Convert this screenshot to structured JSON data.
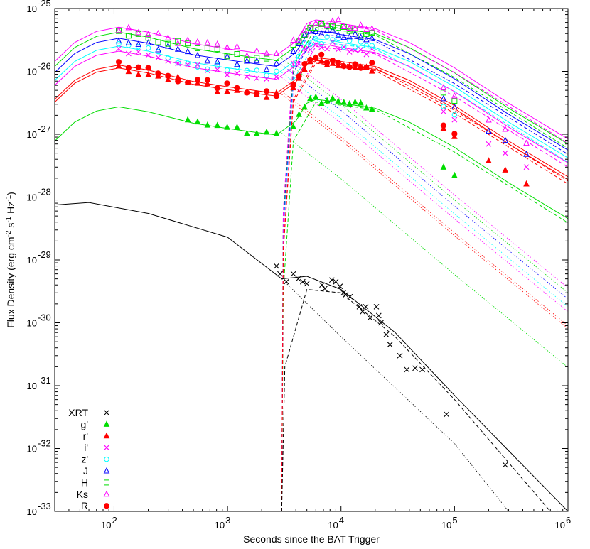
{
  "chart_data": {
    "type": "scatter",
    "title": "",
    "xlabel": "Seconds since the BAT Trigger",
    "ylabel_parts": {
      "main": "Flux Density (erg cm",
      "exp1": "-2",
      "mid1": " s",
      "exp2": "-1",
      "mid2": " Hz",
      "exp3": "-1",
      "end": ")"
    },
    "x_scale": "log",
    "y_scale": "log",
    "xlim": [
      30,
      1000000
    ],
    "ylim": [
      1e-33,
      1e-25
    ],
    "x_ticks": [
      {
        "value": 100,
        "base": "10",
        "exp": "2"
      },
      {
        "value": 1000,
        "base": "10",
        "exp": "3"
      },
      {
        "value": 10000,
        "base": "10",
        "exp": "4"
      },
      {
        "value": 100000,
        "base": "10",
        "exp": "5"
      },
      {
        "value": 1000000,
        "base": "10",
        "exp": "6"
      }
    ],
    "y_ticks": [
      {
        "value": 1e-25,
        "base": "10",
        "exp": "-25"
      },
      {
        "value": 1e-26,
        "base": "10",
        "exp": "-26"
      },
      {
        "value": 1e-27,
        "base": "10",
        "exp": "-27"
      },
      {
        "value": 1e-28,
        "base": "10",
        "exp": "-28"
      },
      {
        "value": 1e-29,
        "base": "10",
        "exp": "-29"
      },
      {
        "value": 1e-30,
        "base": "10",
        "exp": "-30"
      },
      {
        "value": 1e-31,
        "base": "10",
        "exp": "-31"
      },
      {
        "value": 1e-32,
        "base": "10",
        "exp": "-32"
      },
      {
        "value": 1e-33,
        "base": "10",
        "exp": "-33"
      }
    ],
    "grid": false,
    "legend_position": "bottom-left",
    "series": [
      {
        "name": "XRT",
        "color": "#000000",
        "marker": "x",
        "factor": 1,
        "points": [
          [
            2700,
            8e-30
          ],
          [
            2900,
            6e-30
          ],
          [
            3300,
            4.5e-30
          ],
          [
            3800,
            6e-30
          ],
          [
            4200,
            5e-30
          ],
          [
            4600,
            4.5e-30
          ],
          [
            5000,
            4.2e-30
          ],
          [
            6800,
            4e-30
          ],
          [
            7200,
            3.5e-30
          ],
          [
            8300,
            4.8e-30
          ],
          [
            9000,
            4.5e-30
          ],
          [
            9800,
            3.8e-30
          ],
          [
            10500,
            3e-30
          ],
          [
            11000,
            2.8e-30
          ],
          [
            12000,
            2.6e-30
          ],
          [
            14500,
            1.8e-30
          ],
          [
            15500,
            1.5e-30
          ],
          [
            16500,
            1.8e-30
          ],
          [
            18000,
            1.2e-30
          ],
          [
            20500,
            1.8e-30
          ],
          [
            21500,
            1.3e-30
          ],
          [
            22500,
            1e-30
          ],
          [
            25000,
            6.5e-31
          ],
          [
            27000,
            4.5e-31
          ],
          [
            33000,
            3e-31
          ],
          [
            38000,
            1.8e-31
          ],
          [
            45000,
            1.9e-31
          ],
          [
            52000,
            1.8e-31
          ],
          [
            85000,
            3.5e-32
          ],
          [
            280000,
            5.5e-33
          ]
        ]
      },
      {
        "name": "g'",
        "color": "#00dd00",
        "marker": "triangle-filled",
        "factor": 0.065,
        "points": []
      },
      {
        "name": "r'",
        "color": "#ff0000",
        "marker": "triangle-filled",
        "factor": 0.27,
        "points": []
      },
      {
        "name": "i'",
        "color": "#ff00ff",
        "marker": "x",
        "factor": 0.5,
        "points": []
      },
      {
        "name": "z'",
        "color": "#00ffff",
        "marker": "circle-open",
        "factor": 0.6,
        "points": []
      },
      {
        "name": "J",
        "color": "#0000ff",
        "marker": "triangle-open",
        "factor": 0.8,
        "points": []
      },
      {
        "name": "H",
        "color": "#00dd00",
        "marker": "square-open",
        "factor": 1,
        "points": []
      },
      {
        "name": "Ks",
        "color": "#ff00ff",
        "marker": "triangle-open",
        "factor": 1.2,
        "points": []
      },
      {
        "name": "R",
        "color": "#ff0000",
        "marker": "circle-filled",
        "factor": 0.3,
        "points": []
      }
    ],
    "optical_shape": [
      [
        100,
        4.2e-26
      ],
      [
        200,
        3.5e-26
      ],
      [
        500,
        2.3e-26
      ],
      [
        1000,
        1.9e-26
      ],
      [
        2000,
        1.6e-26
      ],
      [
        2700,
        1.5e-26
      ],
      [
        4000,
        2.5e-26
      ],
      [
        5000,
        4.8e-26
      ],
      [
        6000,
        5.5e-26
      ],
      [
        8000,
        5.2e-26
      ],
      [
        10000,
        4.8e-26
      ],
      [
        15000,
        4.3e-26
      ],
      [
        20000,
        4e-26
      ]
    ],
    "optical_late_points": [
      [
        80000,
        4.6e-27
      ],
      [
        100000,
        3.4e-27
      ],
      [
        200000,
        1.4e-27
      ],
      [
        280000,
        1e-27
      ],
      [
        430000,
        6e-28
      ]
    ]
  }
}
